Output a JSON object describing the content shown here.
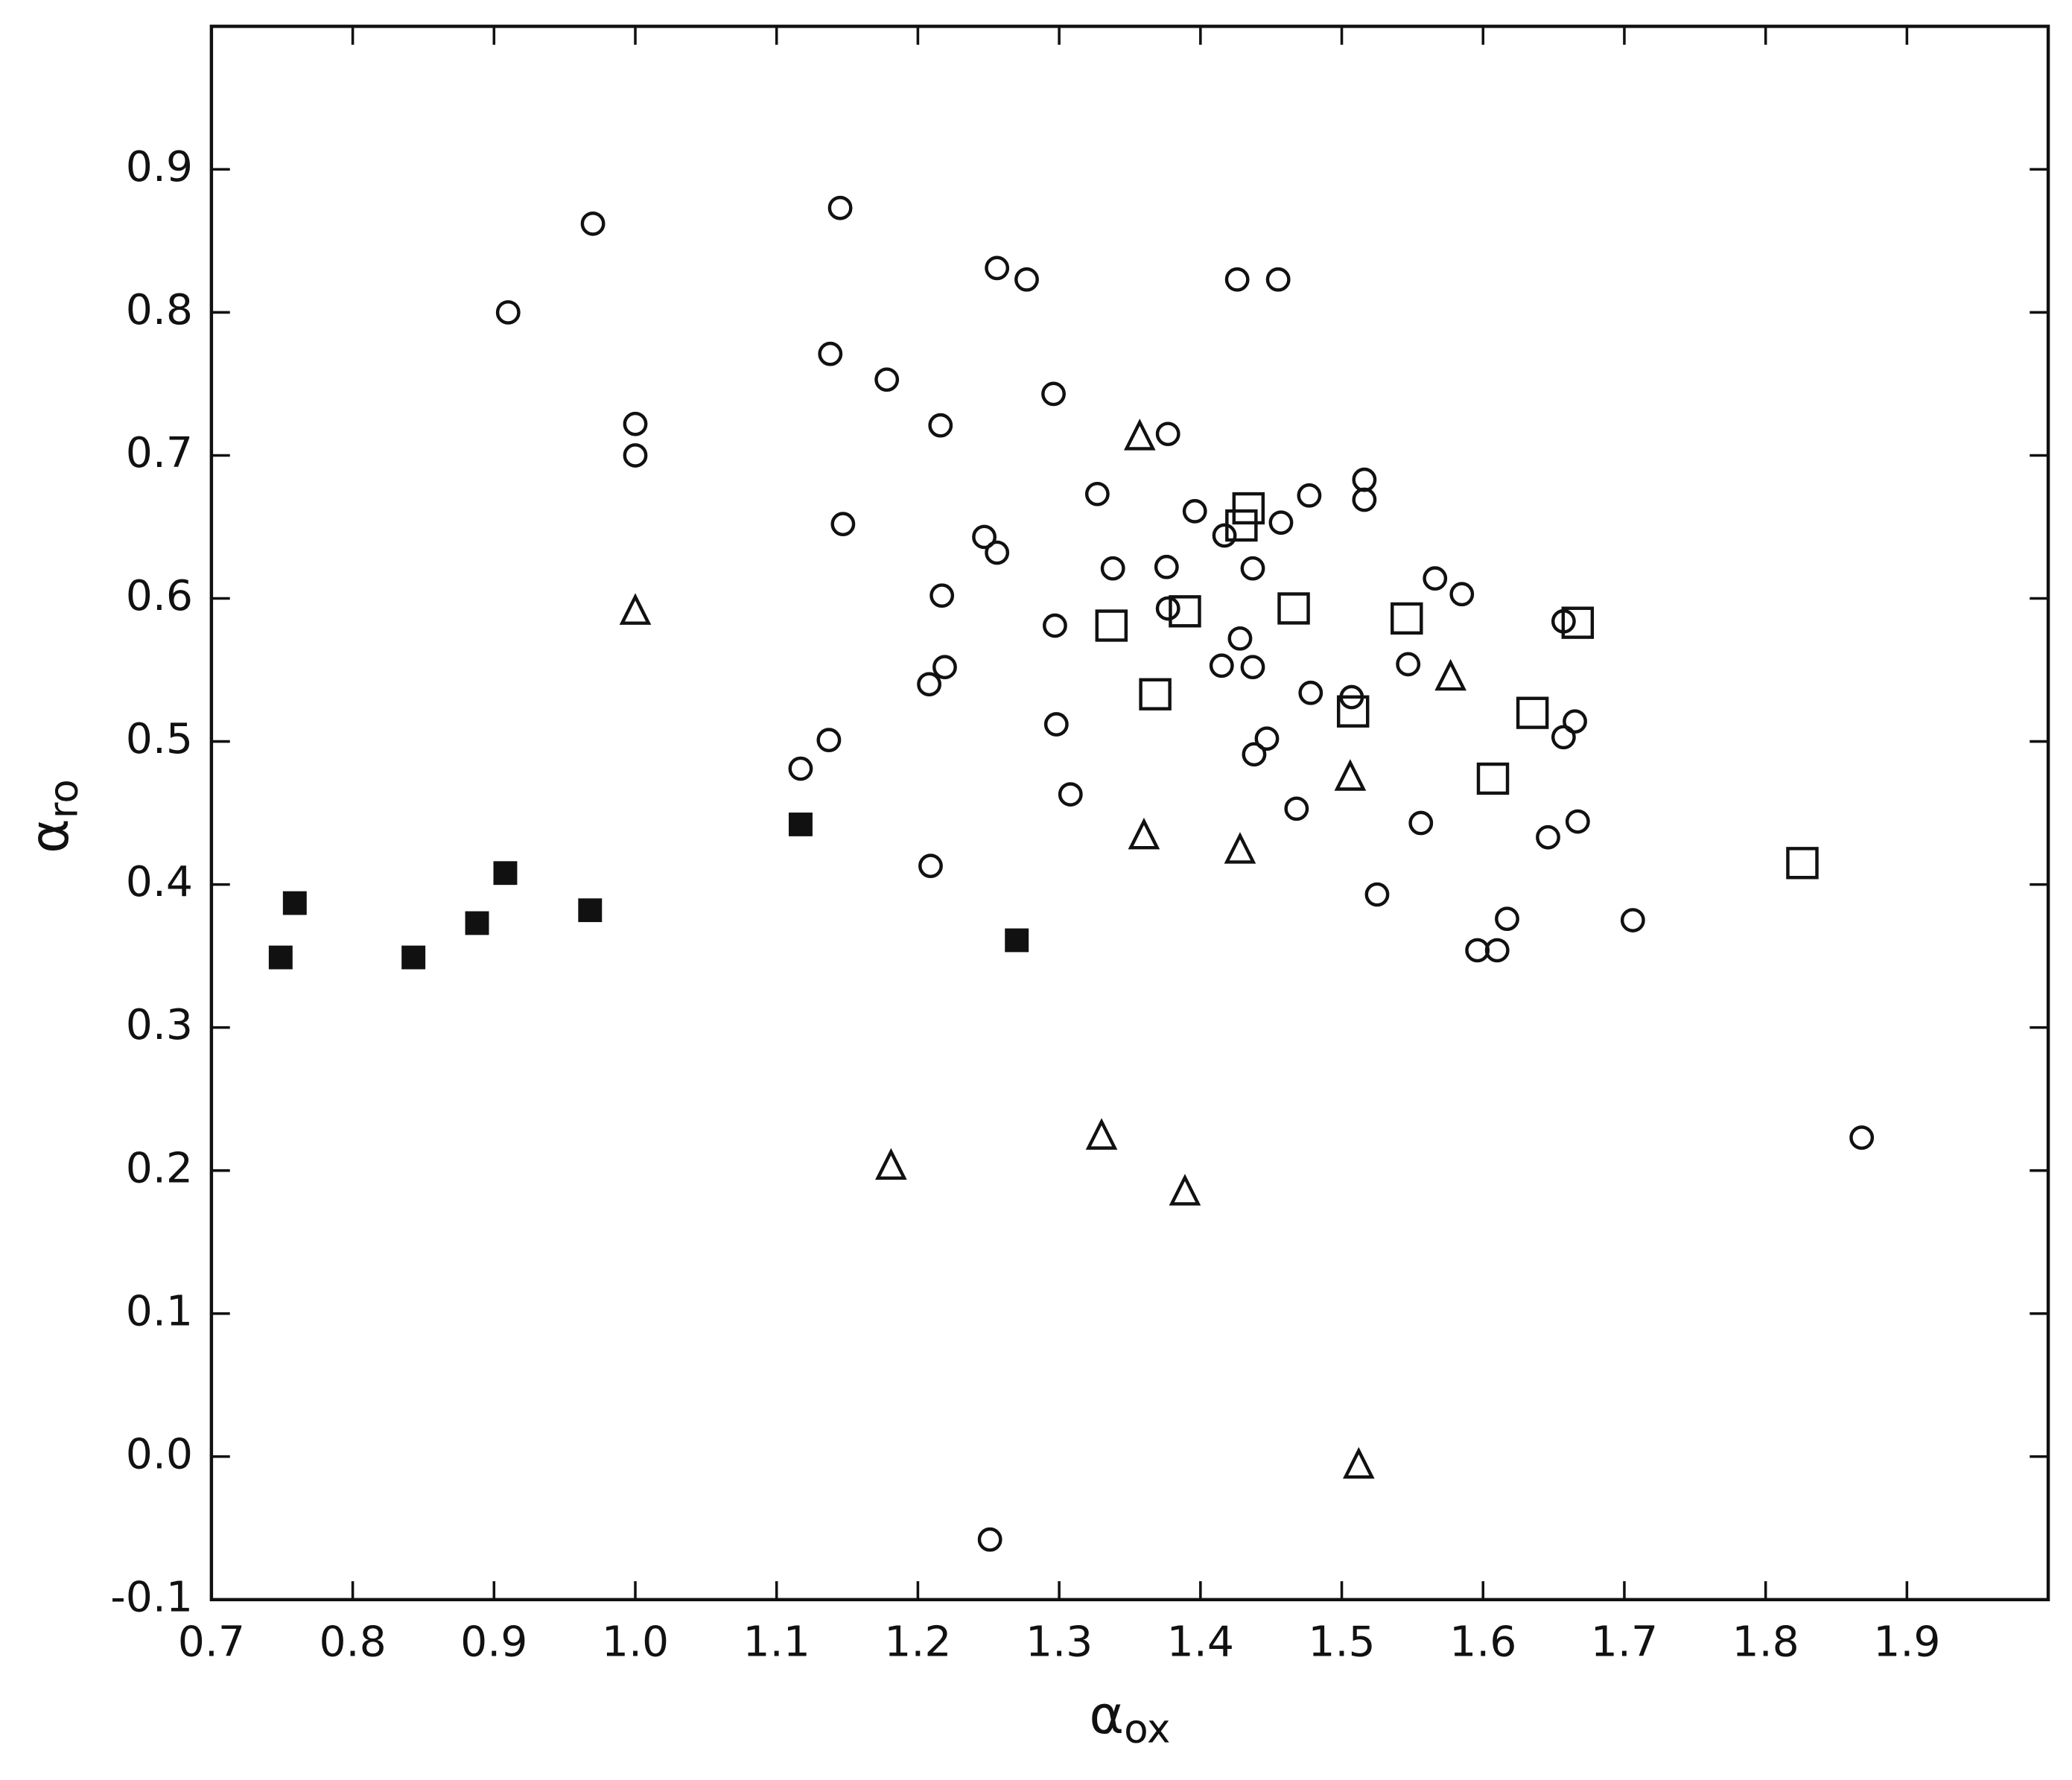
{
  "chart_data": {
    "type": "scatter",
    "x_label_symbol": "α",
    "x_label_subscript": "ox",
    "y_label_symbol": "α",
    "y_label_subscript": "ro",
    "xlim": [
      0.7,
      2.0
    ],
    "xticks": [
      0.7,
      0.8,
      0.9,
      {
        "value": 1,
        "label": "1.0"
      },
      1.1,
      1.2,
      1.3,
      1.4,
      1.5,
      1.6,
      1.7,
      1.8,
      1.9
    ],
    "ylim": [
      -0.1,
      1.0
    ],
    "yticks": [
      -0.1,
      {
        "value": 0,
        "label": "0.0"
      },
      0.1,
      0.2,
      0.3,
      0.4,
      0.5,
      0.6,
      0.7,
      0.8,
      0.9
    ],
    "grid": false,
    "series": [
      {
        "marker": "open-circle",
        "color": "#111111",
        "x": [
          0.97,
          0.91,
          1.0,
          1.0,
          1.145,
          1.138,
          1.178,
          1.147,
          1.216,
          1.217,
          1.219,
          1.208,
          1.137,
          1.117,
          1.209,
          1.256,
          1.277,
          1.296,
          1.247,
          1.256,
          1.297,
          1.298,
          1.308,
          1.327,
          1.338,
          1.377,
          1.376,
          1.377,
          1.396,
          1.417,
          1.426,
          1.455,
          1.437,
          1.457,
          1.428,
          1.415,
          1.437,
          1.447,
          1.438,
          1.468,
          1.477,
          1.478,
          1.507,
          1.516,
          1.516,
          1.547,
          1.566,
          1.585,
          1.556,
          1.525,
          1.596,
          1.61,
          1.617,
          1.646,
          1.657,
          1.657,
          1.665,
          1.667,
          1.706,
          1.868,
          1.251
        ],
        "values": [
          0.862,
          0.8,
          0.722,
          0.7,
          0.873,
          0.771,
          0.753,
          0.652,
          0.721,
          0.602,
          0.552,
          0.54,
          0.501,
          0.481,
          0.413,
          0.831,
          0.823,
          0.743,
          0.643,
          0.632,
          0.581,
          0.512,
          0.463,
          0.673,
          0.621,
          0.715,
          0.622,
          0.593,
          0.661,
          0.644,
          0.823,
          0.823,
          0.621,
          0.653,
          0.572,
          0.553,
          0.552,
          0.502,
          0.491,
          0.453,
          0.672,
          0.534,
          0.531,
          0.683,
          0.669,
          0.554,
          0.614,
          0.603,
          0.443,
          0.393,
          0.354,
          0.354,
          0.376,
          0.433,
          0.584,
          0.503,
          0.514,
          0.444,
          0.375,
          0.223,
          -0.058
        ]
      },
      {
        "marker": "open-square",
        "color": "#111111",
        "x": [
          1.337,
          1.368,
          1.389,
          1.434,
          1.429,
          1.466,
          1.546,
          1.508,
          1.667,
          1.635,
          1.607,
          1.826
        ],
        "values": [
          0.581,
          0.533,
          0.591,
          0.663,
          0.651,
          0.593,
          0.586,
          0.521,
          0.583,
          0.52,
          0.474,
          0.415
        ]
      },
      {
        "marker": "open-triangle",
        "color": "#111111",
        "x": [
          1.357,
          1.0,
          1.577,
          1.506,
          1.36,
          1.428,
          1.181,
          1.33,
          1.389,
          1.512
        ],
        "values": [
          0.713,
          0.591,
          0.545,
          0.475,
          0.434,
          0.424,
          0.203,
          0.224,
          0.185,
          -0.006
        ]
      },
      {
        "marker": "filled-square",
        "color": "#111111",
        "x": [
          0.749,
          0.759,
          0.843,
          0.888,
          0.908,
          0.968,
          1.117,
          1.27
        ],
        "values": [
          0.349,
          0.387,
          0.349,
          0.373,
          0.408,
          0.382,
          0.442,
          0.361
        ]
      }
    ]
  }
}
